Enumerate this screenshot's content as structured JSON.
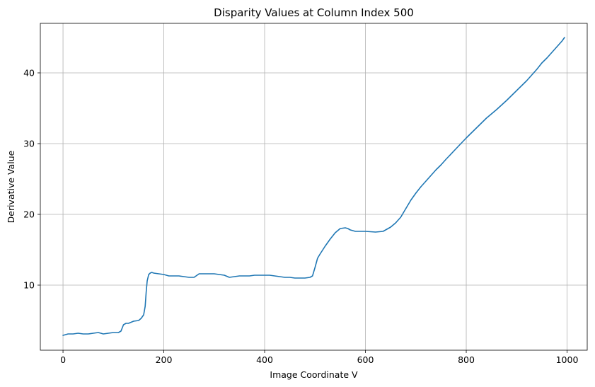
{
  "chart_data": {
    "type": "line",
    "title": "Disparity Values at Column Index 500",
    "xlabel": "Image Coordinate V",
    "ylabel": "Derivative Value",
    "xlim": [
      -45,
      1040
    ],
    "ylim": [
      0.8,
      47.0
    ],
    "xticks": [
      0,
      200,
      400,
      600,
      800,
      1000
    ],
    "yticks": [
      10,
      20,
      30,
      40
    ],
    "xtick_labels": [
      "0",
      "200",
      "400",
      "600",
      "800",
      "1000"
    ],
    "ytick_labels": [
      "10",
      "20",
      "30",
      "40"
    ],
    "grid": true,
    "legend": "none",
    "colors": {
      "series": "#1f77b4",
      "grid": "#b0b0b0"
    },
    "series": [
      {
        "x": [
          0,
          10,
          20,
          30,
          40,
          50,
          60,
          70,
          80,
          90,
          100,
          110,
          115,
          120,
          125,
          130,
          140,
          150,
          155,
          160,
          163,
          165,
          167,
          170,
          173,
          176,
          180,
          190,
          200,
          210,
          220,
          230,
          240,
          250,
          260,
          270,
          280,
          290,
          300,
          310,
          320,
          330,
          340,
          350,
          360,
          370,
          380,
          390,
          400,
          410,
          420,
          430,
          440,
          450,
          460,
          470,
          480,
          490,
          495,
          500,
          505,
          510,
          520,
          530,
          540,
          550,
          560,
          565,
          570,
          580,
          590,
          600,
          620,
          635,
          640,
          650,
          660,
          670,
          680,
          690,
          700,
          710,
          720,
          730,
          740,
          750,
          760,
          780,
          800,
          820,
          840,
          860,
          880,
          900,
          910,
          920,
          930,
          940,
          950,
          960,
          970,
          980,
          990,
          995
        ],
        "y": [
          2.9,
          3.1,
          3.1,
          3.2,
          3.1,
          3.1,
          3.2,
          3.3,
          3.1,
          3.2,
          3.3,
          3.3,
          3.5,
          4.4,
          4.6,
          4.6,
          4.9,
          5.0,
          5.3,
          5.8,
          7.0,
          9.0,
          10.6,
          11.5,
          11.7,
          11.8,
          11.7,
          11.6,
          11.5,
          11.3,
          11.3,
          11.3,
          11.2,
          11.1,
          11.1,
          11.6,
          11.6,
          11.6,
          11.6,
          11.5,
          11.4,
          11.1,
          11.2,
          11.3,
          11.3,
          11.3,
          11.4,
          11.4,
          11.4,
          11.4,
          11.3,
          11.2,
          11.1,
          11.1,
          11.0,
          11.0,
          11.0,
          11.1,
          11.3,
          12.5,
          13.8,
          14.4,
          15.5,
          16.5,
          17.4,
          18.0,
          18.1,
          18.0,
          17.8,
          17.6,
          17.6,
          17.6,
          17.5,
          17.6,
          17.8,
          18.2,
          18.8,
          19.6,
          20.8,
          22.0,
          23.0,
          23.9,
          24.7,
          25.5,
          26.3,
          27.0,
          27.8,
          29.3,
          30.8,
          32.2,
          33.6,
          34.8,
          36.1,
          37.5,
          38.2,
          38.9,
          39.7,
          40.5,
          41.4,
          42.1,
          42.9,
          43.7,
          44.5,
          45.0
        ]
      }
    ]
  }
}
